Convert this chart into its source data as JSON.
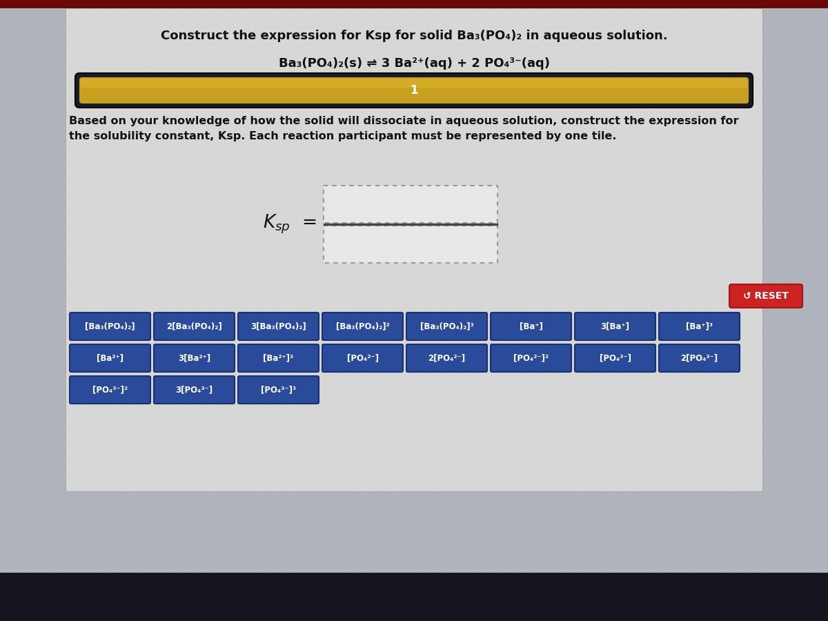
{
  "title_line1": "Construct the expression for Ksp for solid Ba₃(PO₄)₂ in aqueous solution.",
  "equation": "Ba₃(PO₄)₂(s) ⇌ 3 Ba²⁺(aq) + 2 PO₄³⁻(aq)",
  "instruction": "Based on your knowledge of how the solid will dissociate in aqueous solution, construct the expression for\nthe solubility constant, Ksp. Each reaction participant must be represented by one tile.",
  "bg_color_outer": "#7a8090",
  "bg_color_inner": "#a0a8b0",
  "content_area_color": "#b8bcc8",
  "progress_bar_outer": "#1a1a28",
  "progress_bar_fill": "#c8a020",
  "tile_bg": "#2a4a9a",
  "tile_border": "#1a3070",
  "tile_text_color": "#ffffff",
  "reset_bg": "#cc2222",
  "reset_border": "#aa1111",
  "ksp_box_fill": "#e8e8e8",
  "ksp_box_border": "#999999",
  "bottom_bar": "#151520",
  "top_bar": "#6a0808",
  "row1_tiles": [
    "[Ba₃(PO₄)₂]",
    "2[Ba₃(PO₄)₂]",
    "3[Ba₃(PO₄)₂]",
    "[Ba₃(PO₄)₂]²",
    "[Ba₃(PO₄)₂]³",
    "[Ba⁺]",
    "3[Ba⁺]",
    "[Ba⁺]³"
  ],
  "row2_tiles": [
    "[Ba²⁺]",
    "3[Ba²⁺]",
    "[Ba²⁺]³",
    "[PO₄²⁻]",
    "2[PO₄²⁻]",
    "[PO₄²⁻]²",
    "[PO₄³⁻]",
    "2[PO₄³⁻]"
  ],
  "row3_tiles": [
    "[PO₄³⁻]²",
    "3[PO₄³⁻]",
    "[PO₄³⁻]³"
  ]
}
